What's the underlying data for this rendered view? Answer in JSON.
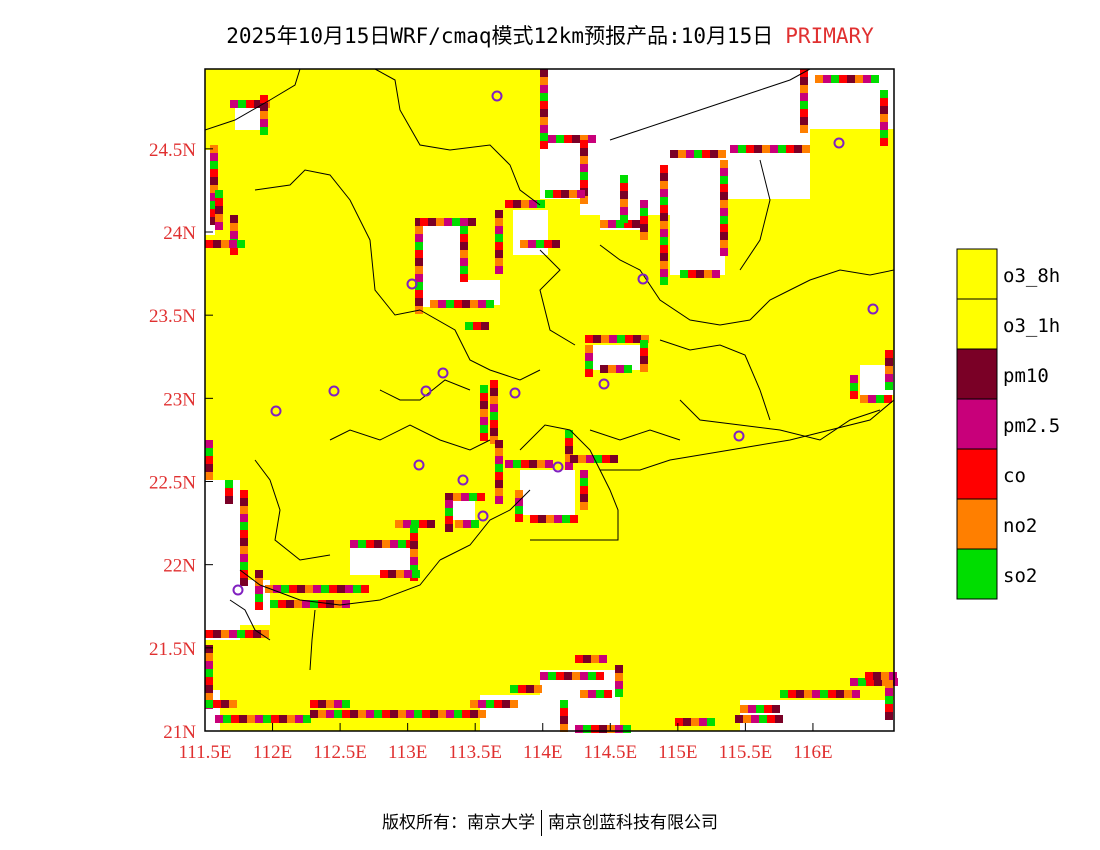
{
  "title": {
    "text": "2025年10月15日WRF/cmaq模式12km预报产品:10月15日",
    "highlight": "PRIMARY"
  },
  "axes": {
    "lon_ticks": [
      "111.5E",
      "112E",
      "112.5E",
      "113E",
      "113.5E",
      "114E",
      "114.5E",
      "115E",
      "115.5E",
      "116E"
    ],
    "lat_ticks": [
      "21N",
      "21.5N",
      "22N",
      "22.5N",
      "23N",
      "23.5N",
      "24N",
      "24.5N"
    ],
    "lon_range": [
      111.5,
      116.6
    ],
    "lat_range": [
      21.0,
      24.98
    ],
    "label_color": "#e03030"
  },
  "legend": [
    {
      "name": "o3_8h",
      "color": "#ffff00"
    },
    {
      "name": "o3_1h",
      "color": "#ffff00"
    },
    {
      "name": "pm10",
      "color": "#7a0026"
    },
    {
      "name": "pm2.5",
      "color": "#c8007a"
    },
    {
      "name": "co",
      "color": "#ff0000"
    },
    {
      "name": "no2",
      "color": "#ff7f00"
    },
    {
      "name": "so2",
      "color": "#00dd00"
    }
  ],
  "footer": {
    "left": "版权所有：南京大学",
    "right": "南京创蓝科技有限公司"
  }
}
